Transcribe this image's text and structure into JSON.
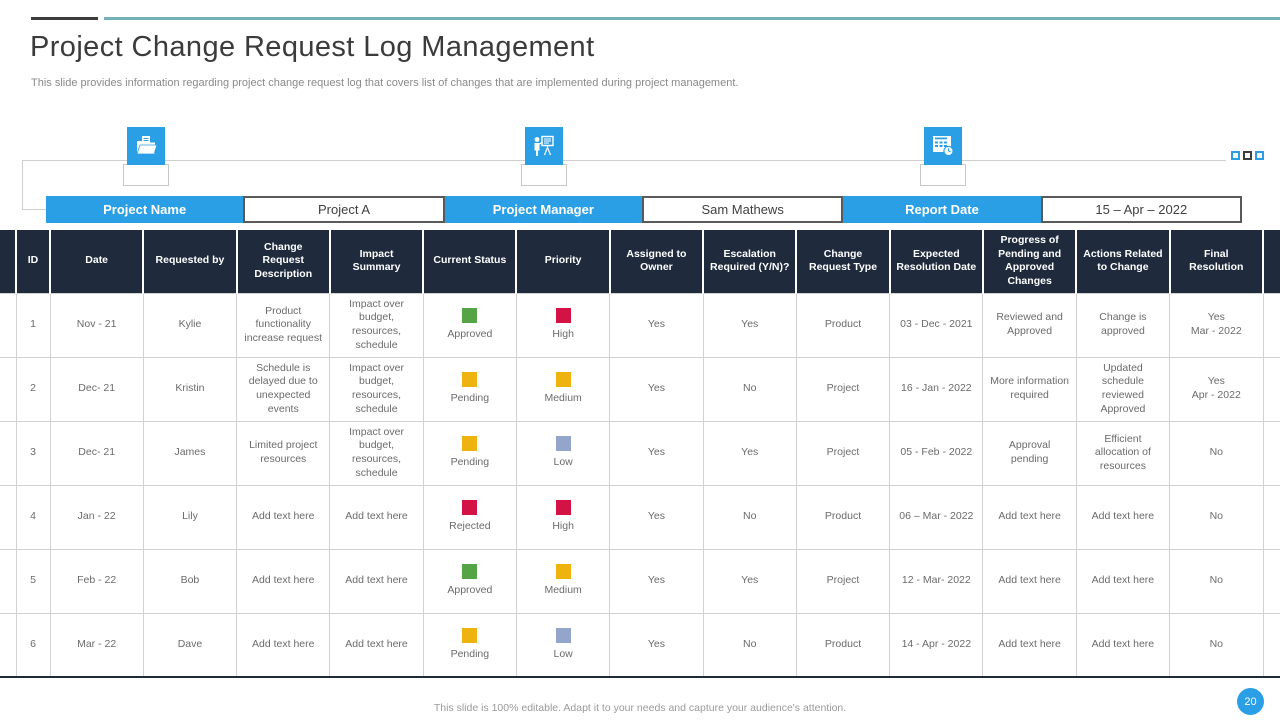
{
  "slide": {
    "title": "Project Change Request Log Management",
    "subtitle": "This slide provides information regarding project change request log that covers list of changes that are implemented during project management.",
    "footer_note": "This slide is 100% editable. Adapt it to your needs and capture your audience's attention.",
    "page_number": "20"
  },
  "colors": {
    "accent_blue": "#2b9fe6",
    "teal_line": "#74b2b8",
    "header_navy": "#1f2b3d"
  },
  "status_colors": {
    "green": "#55a546",
    "yellow": "#efb310",
    "red": "#d31245",
    "slate": "#94a5cb"
  },
  "info_bar": {
    "items": [
      {
        "label": "Project Name",
        "value": "Project A",
        "icon": "folder-icon"
      },
      {
        "label": "Project Manager",
        "value": "Sam Mathews",
        "icon": "presenter-icon"
      },
      {
        "label": "Report Date",
        "value": "15 – Apr – 2022",
        "icon": "calendar-clock-icon"
      }
    ]
  },
  "table": {
    "headers": [
      "ID",
      "Date",
      "Requested by",
      "Change Request Description",
      "Impact Summary",
      "Current Status",
      "Priority",
      "Assigned to Owner",
      "Escalation Required (Y/N)?",
      "Change Request Type",
      "Expected Resolution Date",
      "Progress of Pending and Approved Changes",
      "Actions Related to Change",
      "Final Resolution"
    ],
    "rows": [
      {
        "id": "1",
        "date": "Nov - 21",
        "requested_by": "Kylie",
        "description": "Product functionality increase request",
        "impact": "Impact over budget, resources, schedule",
        "status": {
          "label": "Approved",
          "color": "green"
        },
        "priority": {
          "label": "High",
          "color": "red"
        },
        "assigned_to_owner": "Yes",
        "escalation_required": "Yes",
        "change_request_type": "Product",
        "expected_resolution_date": "03 - Dec - 2021",
        "progress": "Reviewed and Approved",
        "actions": "Change is approved",
        "final_resolution": "Yes\nMar - 2022"
      },
      {
        "id": "2",
        "date": "Dec- 21",
        "requested_by": "Kristin",
        "description": "Schedule is delayed due to unexpected events",
        "impact": "Impact over budget, resources, schedule",
        "status": {
          "label": "Pending",
          "color": "yellow"
        },
        "priority": {
          "label": "Medium",
          "color": "yellow"
        },
        "assigned_to_owner": "Yes",
        "escalation_required": "No",
        "change_request_type": "Project",
        "expected_resolution_date": "16 - Jan - 2022",
        "progress": "More information required",
        "actions": "Updated schedule reviewed Approved",
        "final_resolution": "Yes\nApr - 2022"
      },
      {
        "id": "3",
        "date": "Dec- 21",
        "requested_by": "James",
        "description": "Limited project resources",
        "impact": "Impact over budget, resources, schedule",
        "status": {
          "label": "Pending",
          "color": "yellow"
        },
        "priority": {
          "label": "Low",
          "color": "slate"
        },
        "assigned_to_owner": "Yes",
        "escalation_required": "Yes",
        "change_request_type": "Project",
        "expected_resolution_date": "05 - Feb - 2022",
        "progress": "Approval pending",
        "actions": "Efficient allocation of resources",
        "final_resolution": "No"
      },
      {
        "id": "4",
        "date": "Jan - 22",
        "requested_by": "Lily",
        "description": "Add text here",
        "impact": "Add text here",
        "status": {
          "label": "Rejected",
          "color": "red"
        },
        "priority": {
          "label": "High",
          "color": "red"
        },
        "assigned_to_owner": "Yes",
        "escalation_required": "No",
        "change_request_type": "Product",
        "expected_resolution_date": "06 – Mar - 2022",
        "progress": "Add text here",
        "actions": "Add text here",
        "final_resolution": "No"
      },
      {
        "id": "5",
        "date": "Feb - 22",
        "requested_by": "Bob",
        "description": "Add text here",
        "impact": "Add text here",
        "status": {
          "label": "Approved",
          "color": "green"
        },
        "priority": {
          "label": "Medium",
          "color": "yellow"
        },
        "assigned_to_owner": "Yes",
        "escalation_required": "Yes",
        "change_request_type": "Project",
        "expected_resolution_date": "12 - Mar- 2022",
        "progress": "Add text here",
        "actions": "Add text here",
        "final_resolution": "No"
      },
      {
        "id": "6",
        "date": "Mar - 22",
        "requested_by": "Dave",
        "description": "Add text here",
        "impact": "Add text here",
        "status": {
          "label": "Pending",
          "color": "yellow"
        },
        "priority": {
          "label": "Low",
          "color": "slate"
        },
        "assigned_to_owner": "Yes",
        "escalation_required": "No",
        "change_request_type": "Product",
        "expected_resolution_date": "14 - Apr - 2022",
        "progress": "Add text here",
        "actions": "Add text here",
        "final_resolution": "No"
      }
    ]
  }
}
